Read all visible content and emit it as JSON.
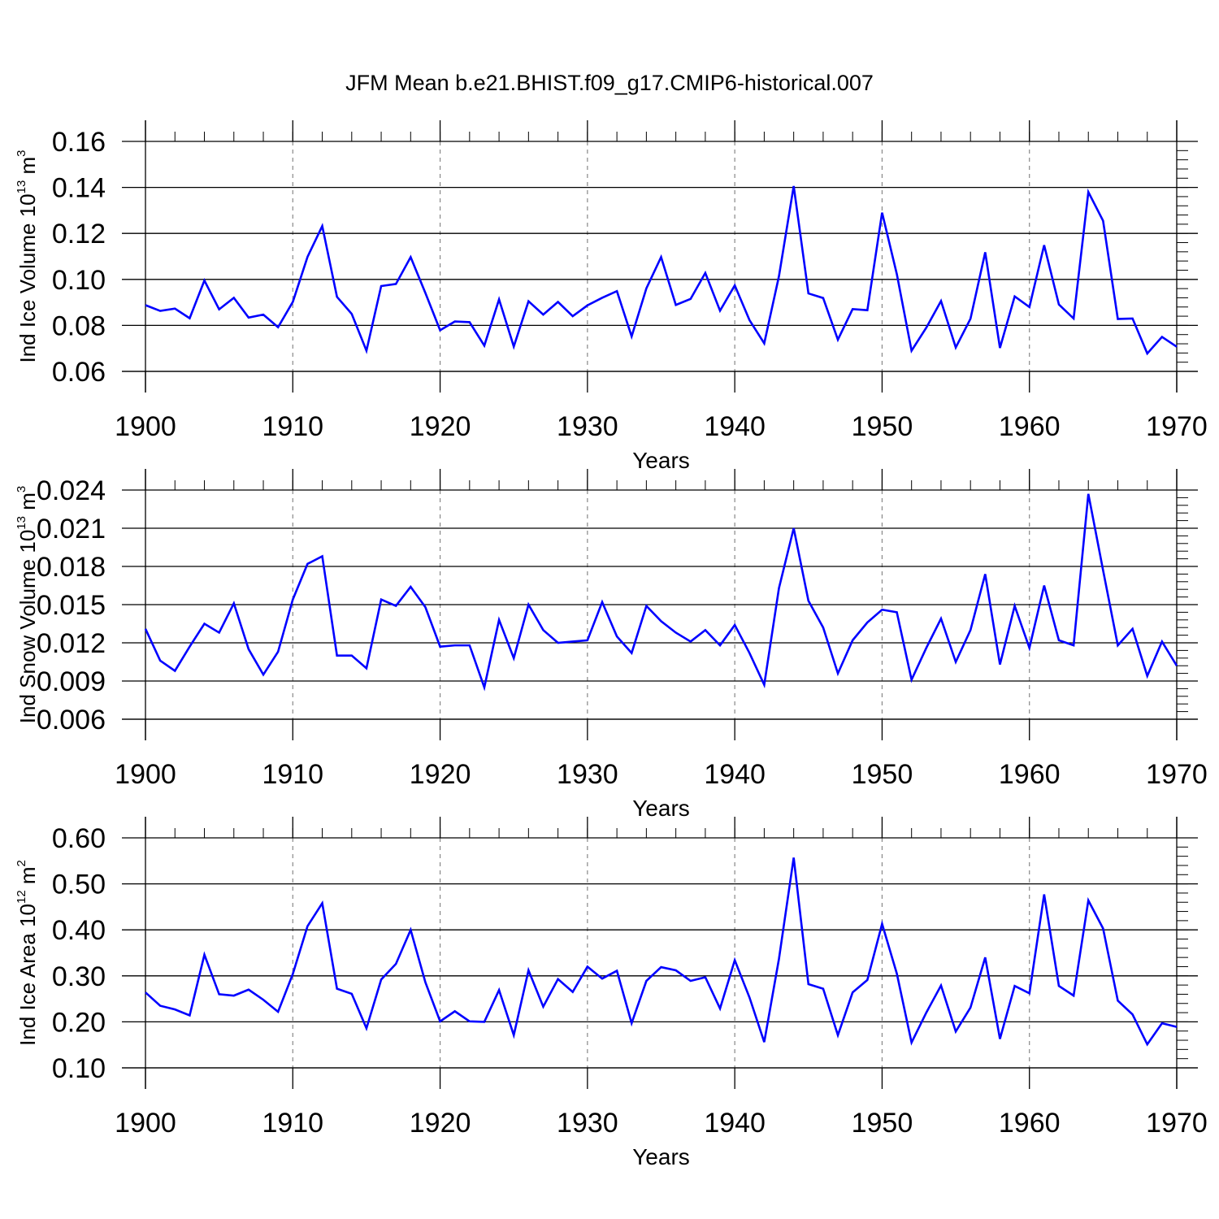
{
  "title": "JFM Mean b.e21.BHIST.f09_g17.CMIP6-historical.007",
  "colors": {
    "line": "#0000ff",
    "axis": "#000000",
    "grid": "#888888"
  },
  "chart_data": [
    {
      "type": "line",
      "xlabel": "Years",
      "ylabel": {
        "main": "Ind Ice Volume 10",
        "exp": "13",
        "unit": " m",
        "unit_exp": "3"
      },
      "xlim": [
        1900,
        1970
      ],
      "ylim": [
        0.06,
        0.16
      ],
      "x_ticks": [
        1900,
        1910,
        1920,
        1930,
        1940,
        1950,
        1960,
        1970
      ],
      "x_tick_labels": [
        "1900",
        "1910",
        "1920",
        "1930",
        "1940",
        "1950",
        "1960",
        "1970"
      ],
      "y_ticks": [
        0.06,
        0.08,
        0.1,
        0.12,
        0.14,
        0.16
      ],
      "y_tick_labels": [
        "0.06",
        "0.08",
        "0.10",
        "0.12",
        "0.14",
        "0.16"
      ],
      "x_minor_step": 2,
      "y_minor_step": 0.004,
      "vgrid_step": 10,
      "x_start": 1900,
      "values": [
        0.0888,
        0.0863,
        0.0873,
        0.0831,
        0.0995,
        0.087,
        0.092,
        0.0834,
        0.0847,
        0.0792,
        0.0902,
        0.1098,
        0.1232,
        0.0924,
        0.085,
        0.069,
        0.0971,
        0.098,
        0.1097,
        0.0941,
        0.0779,
        0.0817,
        0.0814,
        0.0712,
        0.0913,
        0.0708,
        0.0905,
        0.0847,
        0.0902,
        0.084,
        0.0887,
        0.092,
        0.0949,
        0.0752,
        0.0961,
        0.1097,
        0.0889,
        0.0915,
        0.1028,
        0.0864,
        0.0974,
        0.0823,
        0.0722,
        0.1014,
        0.1406,
        0.0939,
        0.0919,
        0.0738,
        0.0871,
        0.0866,
        0.129,
        0.1023,
        0.069,
        0.079,
        0.0906,
        0.0704,
        0.0829,
        0.1118,
        0.0702,
        0.0926,
        0.088,
        0.1149,
        0.0891,
        0.083,
        0.138,
        0.1255,
        0.0828,
        0.083,
        0.0678,
        0.075,
        0.0707
      ]
    },
    {
      "type": "line",
      "xlabel": "Years",
      "ylabel": {
        "main": "Ind Snow Volume 10",
        "exp": "13",
        "unit": " m",
        "unit_exp": "3"
      },
      "xlim": [
        1900,
        1970
      ],
      "ylim": [
        0.006,
        0.024
      ],
      "x_ticks": [
        1900,
        1910,
        1920,
        1930,
        1940,
        1950,
        1960,
        1970
      ],
      "x_tick_labels": [
        "1900",
        "1910",
        "1920",
        "1930",
        "1940",
        "1950",
        "1960",
        "1970"
      ],
      "y_ticks": [
        0.006,
        0.009,
        0.012,
        0.015,
        0.018,
        0.021,
        0.024
      ],
      "y_tick_labels": [
        "0.006",
        "0.009",
        "0.012",
        "0.015",
        "0.018",
        "0.021",
        "0.024"
      ],
      "x_minor_step": 2,
      "y_minor_step": 0.0006,
      "vgrid_step": 10,
      "x_start": 1900,
      "values": [
        0.0131,
        0.0106,
        0.0098,
        0.0117,
        0.0135,
        0.0128,
        0.0151,
        0.0115,
        0.0095,
        0.0113,
        0.0154,
        0.0182,
        0.0188,
        0.011,
        0.011,
        0.01,
        0.0154,
        0.0149,
        0.0164,
        0.0148,
        0.0117,
        0.0118,
        0.0118,
        0.0085,
        0.0138,
        0.0108,
        0.015,
        0.013,
        0.012,
        0.0121,
        0.0122,
        0.0152,
        0.0125,
        0.0112,
        0.0149,
        0.0137,
        0.0128,
        0.0121,
        0.013,
        0.0118,
        0.0134,
        0.0112,
        0.0087,
        0.0163,
        0.021,
        0.0153,
        0.0132,
        0.0096,
        0.0122,
        0.0136,
        0.0146,
        0.0144,
        0.0091,
        0.0116,
        0.0139,
        0.0105,
        0.013,
        0.0174,
        0.0103,
        0.0149,
        0.0116,
        0.0165,
        0.0122,
        0.0118,
        0.0237,
        0.0177,
        0.0118,
        0.0131,
        0.0094,
        0.0121,
        0.0102
      ]
    },
    {
      "type": "line",
      "xlabel": "Years",
      "ylabel": {
        "main": "Ind Ice Area 10",
        "exp": "12",
        "unit": " m",
        "unit_exp": "2"
      },
      "xlim": [
        1900,
        1970
      ],
      "ylim": [
        0.1,
        0.6
      ],
      "x_ticks": [
        1900,
        1910,
        1920,
        1930,
        1940,
        1950,
        1960,
        1970
      ],
      "x_tick_labels": [
        "1900",
        "1910",
        "1920",
        "1930",
        "1940",
        "1950",
        "1960",
        "1970"
      ],
      "y_ticks": [
        0.1,
        0.2,
        0.3,
        0.4,
        0.5,
        0.6
      ],
      "y_tick_labels": [
        "0.10",
        "0.20",
        "0.30",
        "0.40",
        "0.50",
        "0.60"
      ],
      "x_minor_step": 2,
      "y_minor_step": 0.02,
      "vgrid_step": 10,
      "x_start": 1900,
      "values": [
        0.264,
        0.235,
        0.227,
        0.214,
        0.346,
        0.26,
        0.257,
        0.27,
        0.248,
        0.222,
        0.304,
        0.408,
        0.458,
        0.272,
        0.261,
        0.186,
        0.292,
        0.326,
        0.4,
        0.286,
        0.201,
        0.223,
        0.201,
        0.2,
        0.269,
        0.171,
        0.312,
        0.233,
        0.293,
        0.265,
        0.32,
        0.294,
        0.311,
        0.197,
        0.289,
        0.319,
        0.312,
        0.289,
        0.297,
        0.229,
        0.334,
        0.253,
        0.156,
        0.337,
        0.557,
        0.282,
        0.272,
        0.171,
        0.264,
        0.291,
        0.413,
        0.305,
        0.155,
        0.22,
        0.279,
        0.179,
        0.231,
        0.34,
        0.163,
        0.278,
        0.262,
        0.477,
        0.278,
        0.257,
        0.464,
        0.403,
        0.246,
        0.216,
        0.151,
        0.197,
        0.189
      ]
    }
  ]
}
